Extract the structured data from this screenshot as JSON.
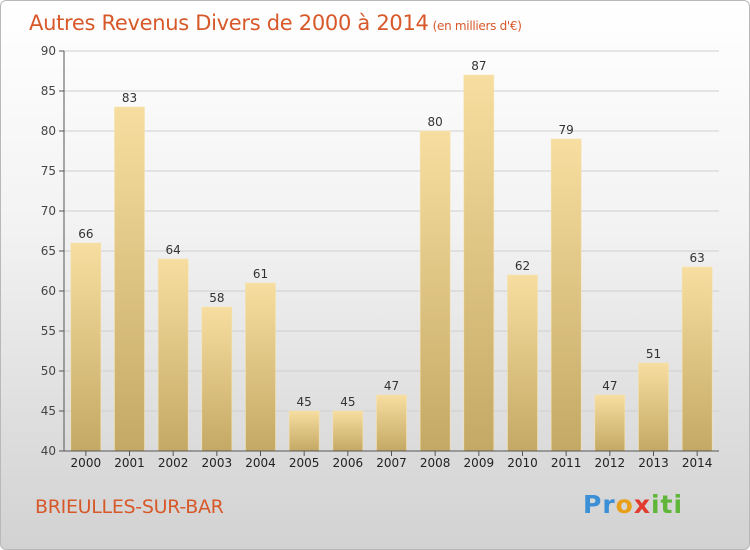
{
  "title": "Autres Revenus Divers de 2000 à 2014",
  "subtitle": "(en milliers d'€)",
  "place": "BRIEULLES-SUR-BAR",
  "logo": {
    "p1": "Pr",
    "p2": "o",
    "p3": "x",
    "p4": "iti"
  },
  "colors": {
    "title": "#d7592a",
    "bar_light": "#f7dea0",
    "bar_dark": "#c4a865",
    "grid": "#cfcfcf",
    "axis": "#555555"
  },
  "chart_data": {
    "type": "bar",
    "categories": [
      "2000",
      "2001",
      "2002",
      "2003",
      "2004",
      "2005",
      "2006",
      "2007",
      "2008",
      "2009",
      "2010",
      "2011",
      "2012",
      "2013",
      "2014"
    ],
    "values": [
      66,
      83,
      64,
      58,
      61,
      45,
      45,
      47,
      80,
      87,
      62,
      79,
      47,
      51,
      63
    ],
    "ylim": [
      40,
      90
    ],
    "yticks": [
      40,
      45,
      50,
      55,
      60,
      65,
      70,
      75,
      80,
      85,
      90
    ],
    "grid": true,
    "data_labels": true
  }
}
